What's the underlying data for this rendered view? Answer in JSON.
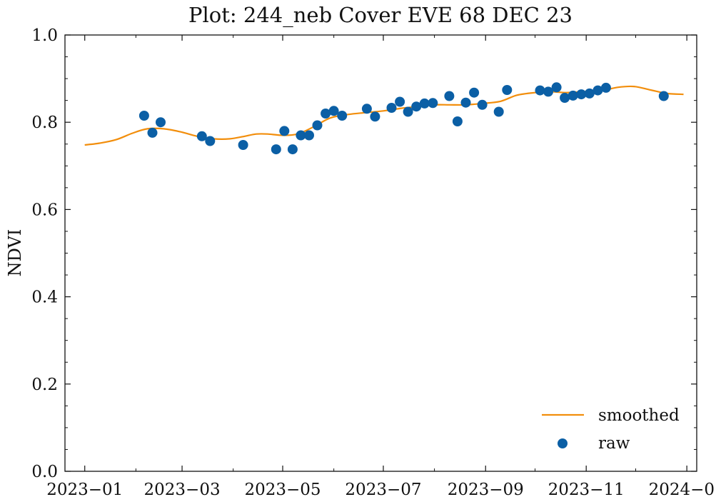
{
  "chart_data": {
    "type": "scatter",
    "title": "Plot: 244_neb Cover EVE 68 DEC 23",
    "xlabel": "",
    "ylabel": "NDVI",
    "xlim": [
      "2022-12-20",
      "2024-01-07"
    ],
    "ylim": [
      0.0,
      1.0
    ],
    "x_ticks": [
      "2023-01",
      "2023-03",
      "2023-05",
      "2023-07",
      "2023-09",
      "2023-11",
      "2024-01"
    ],
    "x_tick_labels": [
      "2023−01",
      "2023−03",
      "2023−05",
      "2023−07",
      "2023−09",
      "2023−11",
      "2024−01"
    ],
    "y_ticks": [
      0.0,
      0.2,
      0.4,
      0.6,
      0.8,
      1.0
    ],
    "y_tick_labels": [
      "0.0",
      "0.2",
      "0.4",
      "0.6",
      "0.8",
      "1.0"
    ],
    "grid": false,
    "legend_position": "bottom-right",
    "series": [
      {
        "name": "smoothed",
        "kind": "line",
        "color": "#f28e0c",
        "x": [
          "2023-01-01",
          "2023-01-10",
          "2023-01-20",
          "2023-01-30",
          "2023-02-08",
          "2023-02-18",
          "2023-02-28",
          "2023-03-10",
          "2023-03-20",
          "2023-03-30",
          "2023-04-08",
          "2023-04-15",
          "2023-04-22",
          "2023-05-01",
          "2023-05-10",
          "2023-05-20",
          "2023-05-30",
          "2023-06-10",
          "2023-06-20",
          "2023-07-01",
          "2023-07-12",
          "2023-07-22",
          "2023-08-01",
          "2023-08-10",
          "2023-08-20",
          "2023-08-30",
          "2023-09-10",
          "2023-09-20",
          "2023-10-01",
          "2023-10-10",
          "2023-10-20",
          "2023-10-30",
          "2023-11-10",
          "2023-11-20",
          "2023-11-30",
          "2023-12-10",
          "2023-12-20",
          "2023-12-30"
        ],
        "y": [
          0.748,
          0.752,
          0.76,
          0.775,
          0.785,
          0.785,
          0.778,
          0.768,
          0.762,
          0.762,
          0.768,
          0.773,
          0.773,
          0.77,
          0.773,
          0.79,
          0.81,
          0.818,
          0.822,
          0.826,
          0.832,
          0.836,
          0.84,
          0.84,
          0.84,
          0.843,
          0.848,
          0.862,
          0.868,
          0.87,
          0.868,
          0.87,
          0.872,
          0.88,
          0.882,
          0.874,
          0.866,
          0.864
        ]
      },
      {
        "name": "raw",
        "kind": "scatter",
        "color": "#0b5fa5",
        "x": [
          "2023-02-06",
          "2023-02-11",
          "2023-02-16",
          "2023-03-13",
          "2023-03-18",
          "2023-04-07",
          "2023-04-27",
          "2023-05-02",
          "2023-05-07",
          "2023-05-12",
          "2023-05-17",
          "2023-05-22",
          "2023-05-27",
          "2023-06-01",
          "2023-06-06",
          "2023-06-21",
          "2023-06-26",
          "2023-07-06",
          "2023-07-11",
          "2023-07-16",
          "2023-07-21",
          "2023-07-26",
          "2023-07-31",
          "2023-08-10",
          "2023-08-15",
          "2023-08-20",
          "2023-08-25",
          "2023-08-30",
          "2023-09-09",
          "2023-09-14",
          "2023-10-04",
          "2023-10-09",
          "2023-10-14",
          "2023-10-19",
          "2023-10-24",
          "2023-10-29",
          "2023-11-03",
          "2023-11-08",
          "2023-11-13",
          "2023-12-18"
        ],
        "y": [
          0.815,
          0.776,
          0.8,
          0.768,
          0.757,
          0.748,
          0.738,
          0.78,
          0.738,
          0.77,
          0.77,
          0.793,
          0.82,
          0.826,
          0.815,
          0.831,
          0.813,
          0.833,
          0.847,
          0.824,
          0.836,
          0.843,
          0.844,
          0.86,
          0.802,
          0.845,
          0.868,
          0.84,
          0.824,
          0.874,
          0.873,
          0.87,
          0.88,
          0.856,
          0.861,
          0.864,
          0.866,
          0.873,
          0.879,
          0.86
        ]
      }
    ]
  }
}
